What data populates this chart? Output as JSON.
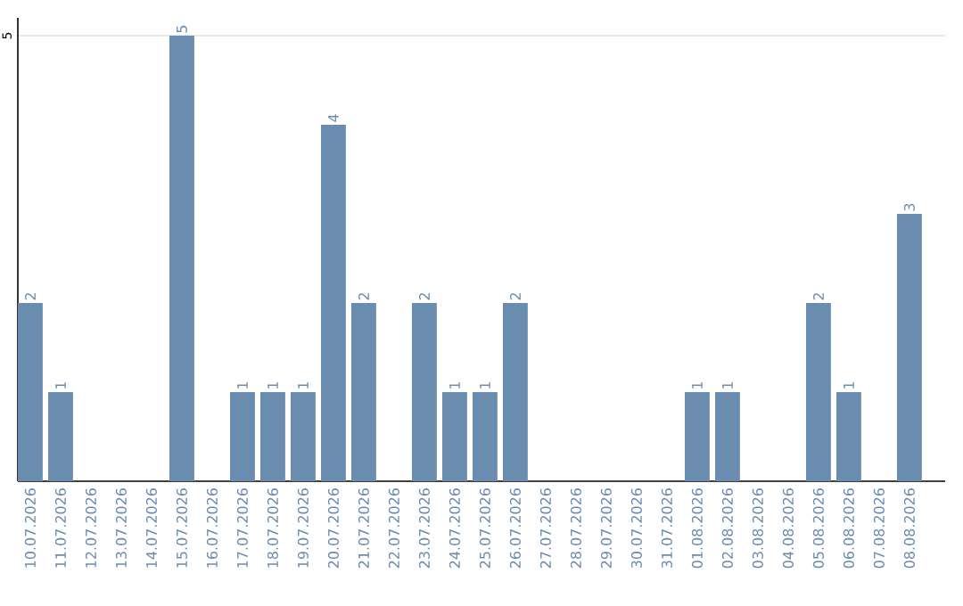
{
  "chart_data": {
    "type": "bar",
    "categories": [
      "10.07.2026",
      "11.07.2026",
      "12.07.2026",
      "13.07.2026",
      "14.07.2026",
      "15.07.2026",
      "16.07.2026",
      "17.07.2026",
      "18.07.2026",
      "19.07.2026",
      "20.07.2026",
      "21.07.2026",
      "22.07.2026",
      "23.07.2026",
      "24.07.2026",
      "25.07.2026",
      "26.07.2026",
      "27.07.2026",
      "28.07.2026",
      "29.07.2026",
      "30.07.2026",
      "31.07.2026",
      "01.08.2026",
      "02.08.2026",
      "03.08.2026",
      "04.08.2026",
      "05.08.2026",
      "06.08.2026",
      "07.08.2026",
      "08.08.2026"
    ],
    "values": [
      2,
      1,
      0,
      0,
      0,
      5,
      0,
      1,
      1,
      1,
      4,
      2,
      0,
      2,
      1,
      1,
      2,
      0,
      0,
      0,
      0,
      0,
      1,
      1,
      0,
      0,
      2,
      1,
      0,
      3
    ],
    "value_labels": [
      "2",
      "1",
      null,
      null,
      null,
      "5",
      null,
      "1",
      "1",
      "1",
      "4",
      "2",
      null,
      "2",
      "1",
      "1",
      "2",
      null,
      null,
      null,
      null,
      null,
      "1",
      "1",
      null,
      null,
      "2",
      "1",
      null,
      "3"
    ],
    "color": "#6a8caf",
    "ylim": [
      0,
      5.2
    ],
    "yticks": [
      5
    ],
    "grid": "y"
  }
}
